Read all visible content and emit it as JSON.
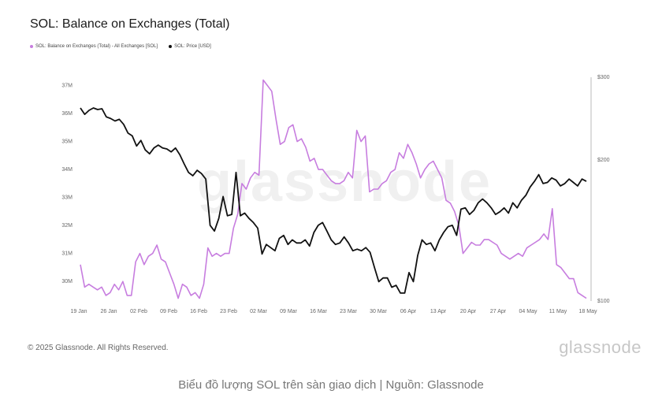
{
  "title": "SOL: Balance on Exchanges (Total)",
  "watermark": "glassnode",
  "copyright": "© 2025 Glassnode. All Rights Reserved.",
  "brand": "glassnode",
  "caption": "Biểu đồ lượng SOL trên sàn giao dịch | Nguồn: Glassnode",
  "colors": {
    "balance": "#c77ddf",
    "price": "#111111",
    "axis": "#bbbbbb",
    "tick": "#666666"
  },
  "chart_data": {
    "type": "line",
    "title": "SOL: Balance on Exchanges (Total)",
    "x_ticks": [
      "19 Jan",
      "26 Jan",
      "02 Feb",
      "09 Feb",
      "16 Feb",
      "23 Feb",
      "02 Mar",
      "09 Mar",
      "16 Mar",
      "23 Mar",
      "30 Mar",
      "06 Apr",
      "13 Apr",
      "20 Apr",
      "27 Apr",
      "04 May",
      "11 May",
      "18 May"
    ],
    "y_left": {
      "ticks": [
        "30M",
        "31M",
        "32M",
        "33M",
        "34M",
        "35M",
        "36M",
        "37M"
      ],
      "ylim": [
        29.3,
        37.3
      ],
      "unit": "M"
    },
    "y_right": {
      "ticks": [
        "$100",
        "$200",
        "$300"
      ],
      "ylim": [
        100,
        300
      ],
      "scale": "log"
    },
    "grid": false,
    "legend": "top-left",
    "series": [
      {
        "name": "SOL: Balance on Exchanges (Total) - All Exchanges [SOL]",
        "axis": "left",
        "values": [
          30.6,
          29.8,
          29.9,
          29.8,
          29.7,
          29.8,
          29.5,
          29.6,
          29.9,
          29.7,
          30.0,
          29.5,
          29.5,
          30.7,
          31.0,
          30.6,
          30.9,
          31.0,
          31.3,
          30.8,
          30.7,
          30.3,
          29.9,
          29.4,
          29.9,
          29.8,
          29.5,
          29.6,
          29.4,
          29.9,
          31.2,
          30.9,
          31.0,
          30.9,
          31.0,
          31.0,
          31.9,
          32.4,
          33.5,
          33.3,
          33.7,
          33.9,
          33.8,
          37.2,
          37.0,
          36.8,
          35.8,
          34.9,
          35.0,
          35.5,
          35.6,
          35.0,
          35.1,
          34.8,
          34.3,
          34.4,
          34.0,
          34.0,
          33.8,
          33.6,
          33.5,
          33.5,
          33.6,
          33.9,
          33.7,
          35.4,
          35.0,
          35.2,
          33.2,
          33.3,
          33.3,
          33.5,
          33.6,
          33.9,
          34.0,
          34.6,
          34.4,
          34.9,
          34.6,
          34.2,
          33.7,
          34.0,
          34.2,
          34.3,
          34.0,
          33.7,
          32.9,
          32.8,
          32.5,
          32.0,
          31.0,
          31.2,
          31.4,
          31.3,
          31.3,
          31.5,
          31.5,
          31.4,
          31.3,
          31.0,
          30.9,
          30.8,
          30.9,
          31.0,
          30.9,
          31.2,
          31.3,
          31.4,
          31.5,
          31.7,
          31.5,
          32.6,
          30.6,
          30.5,
          30.3,
          30.1,
          30.1,
          29.6,
          29.5,
          29.4
        ],
        "color": "#c77ddf"
      },
      {
        "name": "SOL: Price [USD]",
        "axis": "right",
        "values": [
          258,
          250,
          255,
          258,
          256,
          257,
          247,
          245,
          242,
          244,
          238,
          228,
          225,
          214,
          220,
          210,
          206,
          212,
          215,
          212,
          211,
          208,
          212,
          205,
          196,
          188,
          185,
          190,
          187,
          182,
          145,
          141,
          150,
          167,
          152,
          153,
          188,
          152,
          154,
          150,
          147,
          143,
          126,
          132,
          130,
          128,
          136,
          138,
          132,
          135,
          133,
          133,
          135,
          131,
          140,
          145,
          147,
          141,
          135,
          132,
          133,
          137,
          133,
          128,
          129,
          128,
          130,
          127,
          118,
          110,
          112,
          112,
          107,
          108,
          104,
          104,
          115,
          110,
          125,
          135,
          132,
          133,
          128,
          135,
          140,
          144,
          145,
          138,
          157,
          158,
          153,
          156,
          162,
          165,
          162,
          158,
          153,
          155,
          158,
          154,
          162,
          158,
          164,
          168,
          175,
          180,
          186,
          178,
          179,
          183,
          181,
          176,
          178,
          182,
          179,
          176,
          182,
          180
        ],
        "color": "#111111"
      }
    ]
  }
}
